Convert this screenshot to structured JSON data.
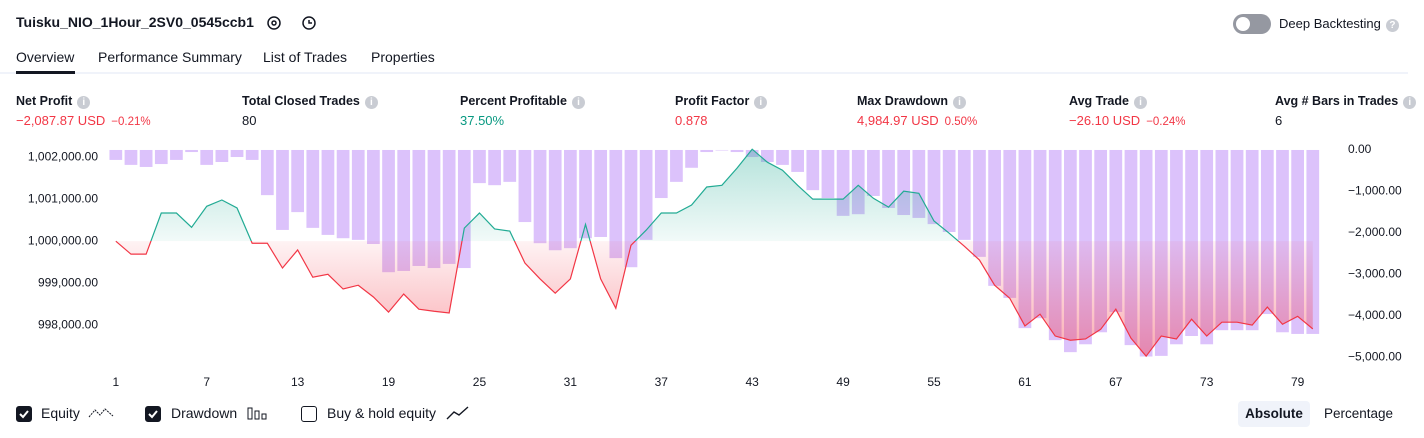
{
  "header": {
    "title": "Tuisku_NIO_1Hour_2SV0_0545ccb1",
    "deep_backtesting": "Deep Backtesting"
  },
  "tabs": [
    "Overview",
    "Performance Summary",
    "List of Trades",
    "Properties"
  ],
  "metrics": [
    {
      "label": "Net Profit",
      "value": "−2,087.87 USD",
      "change": "−0.21%"
    },
    {
      "label": "Total Closed Trades",
      "value": "80"
    },
    {
      "label": "Percent Profitable",
      "value": "37.50%"
    },
    {
      "label": "Profit Factor",
      "value": "0.878"
    },
    {
      "label": "Max Drawdown",
      "value": "4,984.97 USD",
      "change": "0.50%"
    },
    {
      "label": "Avg Trade",
      "value": "−26.10 USD",
      "change": "−0.24%"
    },
    {
      "label": "Avg # Bars in Trades",
      "value": "6"
    }
  ],
  "chart_data": {
    "type": "combo",
    "x": [
      1,
      2,
      3,
      4,
      5,
      6,
      7,
      8,
      9,
      10,
      11,
      12,
      13,
      14,
      15,
      16,
      17,
      18,
      19,
      20,
      21,
      22,
      23,
      24,
      25,
      26,
      27,
      28,
      29,
      30,
      31,
      32,
      33,
      34,
      35,
      36,
      37,
      38,
      39,
      40,
      41,
      42,
      43,
      44,
      45,
      46,
      47,
      48,
      49,
      50,
      51,
      52,
      53,
      54,
      55,
      56,
      57,
      58,
      59,
      60,
      61,
      62,
      63,
      64,
      65,
      66,
      67,
      68,
      69,
      70,
      71,
      72,
      73,
      74,
      75,
      76,
      77,
      78,
      79,
      80
    ],
    "xlim": [
      0.55,
      81.4
    ],
    "xticks": [
      1,
      7,
      13,
      19,
      25,
      31,
      37,
      43,
      49,
      55,
      61,
      67,
      73,
      79
    ],
    "ylim": [
      997050,
      1002290
    ],
    "yticks": [
      {
        "value": 1002000,
        "label": "1,002,000.00"
      },
      {
        "value": 1001000,
        "label": "1,001,000.00"
      },
      {
        "value": 1000000,
        "label": "1,000,000.00"
      },
      {
        "value": 999000,
        "label": "999,000.00"
      },
      {
        "value": 998000,
        "label": "998,000.00"
      }
    ],
    "y2lim": [
      -5190,
      120
    ],
    "y2ticks": [
      {
        "value": 0,
        "label": "0.00"
      },
      {
        "value": -1000,
        "label": "−1,000.00"
      },
      {
        "value": -2000,
        "label": "−2,000.00"
      },
      {
        "value": -3000,
        "label": "−3,000.00"
      },
      {
        "value": -4000,
        "label": "−4,000.00"
      },
      {
        "value": -5000,
        "label": "−5,000.00"
      }
    ],
    "grid": false,
    "series": [
      {
        "name": "Equity",
        "type": "line",
        "color": "#22ab94",
        "negative_color": "#f23645",
        "checked": true,
        "values": [
          1000000,
          999690,
          999690,
          1000670,
          1000670,
          1000330,
          1000830,
          1000980,
          1000790,
          999950,
          999950,
          999360,
          999790,
          999140,
          999210,
          998860,
          998950,
          998670,
          998310,
          998740,
          998380,
          998330,
          998290,
          1000310,
          1000670,
          1000290,
          1000240,
          999480,
          999100,
          998760,
          999100,
          1000400,
          999100,
          998400,
          999900,
          1000260,
          1000670,
          1000670,
          1000860,
          1001290,
          1001330,
          1001740,
          1002190,
          1001880,
          1001690,
          1001330,
          1001000,
          1001000,
          1001000,
          1001330,
          1001020,
          1000810,
          1001190,
          1001140,
          1000480,
          1000190,
          999880,
          999550,
          998950,
          998640,
          997980,
          998260,
          997740,
          997640,
          997670,
          997900,
          998380,
          997690,
          997260,
          997740,
          997670,
          998140,
          997740,
          998070,
          998070,
          998000,
          998430,
          998020,
          998210,
          997910
        ]
      },
      {
        "name": "Drawdown",
        "type": "bar",
        "axis": "y2",
        "color": "#dcc2fb",
        "checked": true,
        "values": [
          -240,
          -360,
          -410,
          -340,
          -240,
          -50,
          -360,
          -290,
          -170,
          -240,
          -1090,
          -1930,
          -1500,
          -1880,
          -2050,
          -2130,
          -2170,
          -2270,
          -2950,
          -2920,
          -2800,
          -2850,
          -2750,
          -2850,
          -800,
          -850,
          -770,
          -1740,
          -2250,
          -2420,
          -2370,
          -2130,
          -2100,
          -2610,
          -2830,
          -2170,
          -1160,
          -770,
          -430,
          -50,
          0,
          -50,
          -170,
          -290,
          -360,
          -530,
          -970,
          -1160,
          -1590,
          -1550,
          -1110,
          -1400,
          -1570,
          -1640,
          -1790,
          -1980,
          -2170,
          -2580,
          -3280,
          -3570,
          -4300,
          -4060,
          -4590,
          -4880,
          -4690,
          -4400,
          -3910,
          -4710,
          -4985,
          -4970,
          -4690,
          -4490,
          -4690,
          -4350,
          -4350,
          -4350,
          -3960,
          -4400,
          -4440,
          -4440
        ]
      }
    ],
    "legend_extra": {
      "name": "Buy & hold equity",
      "checked": false
    },
    "modes": [
      "Absolute",
      "Percentage"
    ]
  }
}
